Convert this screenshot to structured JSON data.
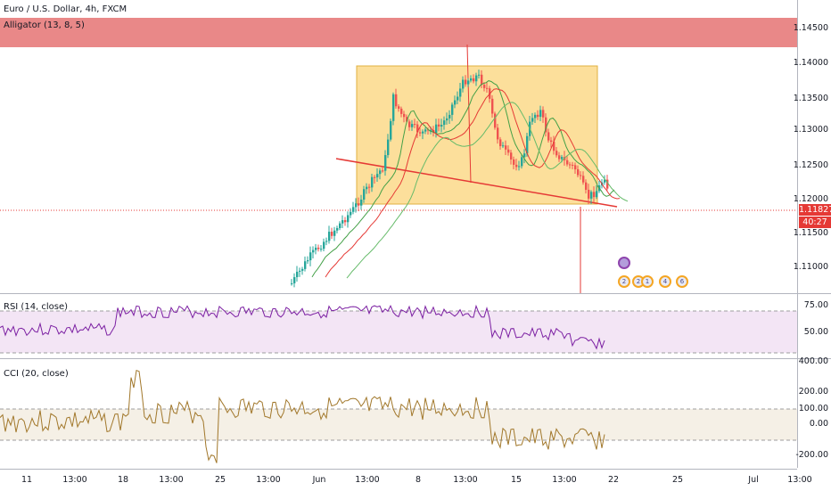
{
  "symbol": {
    "title": "Euro / U.S. Dollar, 4h, FXCM",
    "indicator": "Alligator (13, 8, 5)"
  },
  "price_axis": {
    "ticks": [
      "1.14500",
      "1.14000",
      "1.13500",
      "1.13000",
      "1.12500",
      "1.12000",
      "1.11500",
      "1.11000"
    ],
    "current_price": "1.11827",
    "countdown": "40:27"
  },
  "rsi": {
    "label": "RSI (14, close)",
    "ticks": [
      "75.00",
      "50.00"
    ],
    "color": "#7b1fa2",
    "band_color": "#f3e5f5"
  },
  "cci": {
    "label": "CCI (20, close)",
    "ticks": [
      "400.00",
      "200.00",
      "100.00",
      "0.00",
      "-200.00"
    ],
    "color": "#a1772a",
    "band_color": "#f5f0e6"
  },
  "time_axis": [
    "11",
    "13:00",
    "18",
    "13:00",
    "25",
    "13:00",
    "Jun",
    "13:00",
    "8",
    "13:00",
    "15",
    "13:00",
    "22",
    "25",
    "Jul",
    "13:00"
  ],
  "colors": {
    "up": "#26a69a",
    "down": "#ef5350",
    "resistance_zone": "#e57373",
    "highlight_box": "#fcd98a",
    "trendline": "#e53935",
    "lips": "#43a047",
    "teeth": "#e53935",
    "jaw": "#2e7d32"
  },
  "events": {
    "row1": [
      "",
      "2",
      "2",
      "1",
      "4",
      "6"
    ]
  }
}
